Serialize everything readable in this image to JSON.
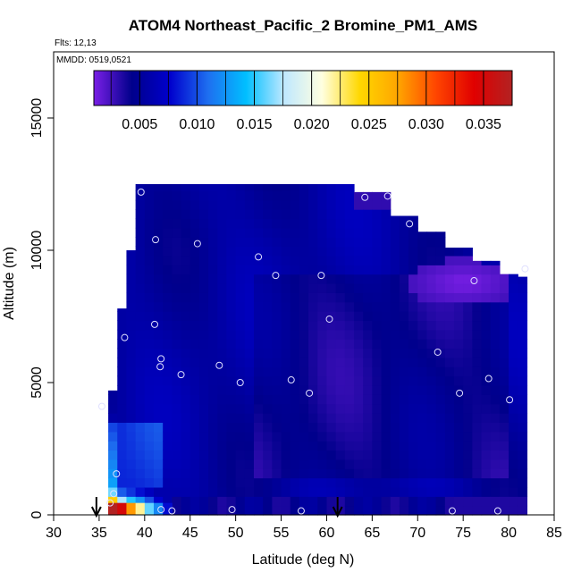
{
  "chart_data": {
    "type": "heatmap",
    "title": "ATOM4 Northeast_Pacific_2 Bromine_PM1_AMS",
    "flights_label": "Flts: 12,13",
    "dates_label": "MMDD: 0519,0521",
    "xlabel": "Latitude (deg N)",
    "ylabel": "Altitude (m)",
    "xlim": [
      30,
      85
    ],
    "ylim": [
      0,
      17500
    ],
    "xticks": [
      "30",
      "35",
      "40",
      "45",
      "50",
      "55",
      "60",
      "65",
      "70",
      "75",
      "80",
      "85"
    ],
    "yticks": [
      "0",
      "5000",
      "10000",
      "15000"
    ],
    "colorbar": {
      "range": [
        0.001,
        0.0375
      ],
      "ticks": [
        "0.005",
        "0.010",
        "0.015",
        "0.020",
        "0.025",
        "0.030",
        "0.035"
      ],
      "colors": [
        "#7a1fe6",
        "#00008b",
        "#0000cd",
        "#1e6ff0",
        "#00bfff",
        "#bfe8ff",
        "#ffffe0",
        "#ffd700",
        "#ffa500",
        "#ff4500",
        "#e00000",
        "#b22222"
      ]
    },
    "colors": {
      "field_bg": "#0a10c8",
      "field_alt": "#1c36e0",
      "purple": "#8a2be2",
      "marker": "#e0e0ff"
    },
    "field": {
      "lat_start": 36,
      "lat_end": 82,
      "lat_step": 1,
      "alt_start": 0,
      "alt_end": 12600,
      "alt_step": 350,
      "value_range": [
        0.003,
        0.036
      ]
    },
    "obs_points": [
      [
        39.6,
        12200
      ],
      [
        41.2,
        10400
      ],
      [
        45.8,
        10250
      ],
      [
        52.5,
        9750
      ],
      [
        54.4,
        9050
      ],
      [
        59.4,
        9050
      ],
      [
        64.2,
        12000
      ],
      [
        66.7,
        12050
      ],
      [
        69.1,
        11000
      ],
      [
        76.2,
        8850
      ],
      [
        81.8,
        9300
      ],
      [
        60.3,
        7400
      ],
      [
        41.1,
        7200
      ],
      [
        37.8,
        6700
      ],
      [
        41.8,
        5900
      ],
      [
        41.7,
        5600
      ],
      [
        48.2,
        5650
      ],
      [
        44.0,
        5300
      ],
      [
        50.5,
        5000
      ],
      [
        56.1,
        5100
      ],
      [
        58.1,
        4600
      ],
      [
        72.2,
        6150
      ],
      [
        74.6,
        4600
      ],
      [
        77.8,
        5150
      ],
      [
        80.1,
        4350
      ],
      [
        35.3,
        4100
      ],
      [
        36.9,
        1550
      ],
      [
        36.6,
        800
      ],
      [
        36.2,
        450
      ],
      [
        41.8,
        200
      ],
      [
        43.0,
        150
      ],
      [
        49.6,
        200
      ],
      [
        57.2,
        150
      ],
      [
        73.8,
        150
      ],
      [
        78.8,
        150
      ]
    ],
    "flight_arrows": [
      34.7,
      61.2
    ]
  }
}
